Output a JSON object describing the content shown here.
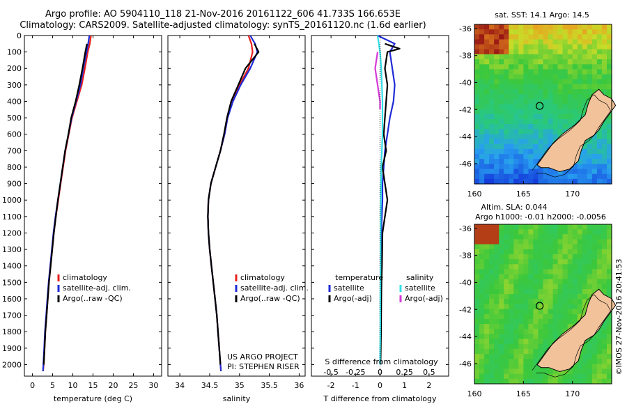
{
  "header": {
    "title_line1": "Argo profile: AO 5904110_118 21-Nov-2016 20161122_606 41.733S 166.653E",
    "title_line2": "Climatology: CARS2009. Satellite-adjusted climatology: synTS_20161120.nc (1.6d earlier)"
  },
  "watermark": "©IMOS 27-Nov-2016 20:41:53",
  "colors": {
    "climatology": "#e8201e",
    "satellite": "#1f2bd6",
    "argo": "#000000",
    "sat_salinity": "#33e0e8",
    "argo_salinity_adj": "#d43ad8"
  },
  "chart_data": [
    {
      "type": "line",
      "id": "temperature",
      "xlabel": "temperature (deg C)",
      "ylabel": "",
      "xlim": [
        -2,
        32
      ],
      "ylim": [
        2070,
        0
      ],
      "xticks": [
        0,
        5,
        10,
        15,
        20,
        25,
        30
      ],
      "yticks": [
        0,
        100,
        200,
        300,
        400,
        500,
        600,
        700,
        800,
        900,
        1000,
        1100,
        1200,
        1300,
        1400,
        1500,
        1600,
        1700,
        1800,
        1900,
        2000
      ],
      "legend": {
        "placement": "lower-right",
        "entries": [
          "climatology",
          "satellite-adj. clim.",
          "Argo(..raw -QC)"
        ]
      },
      "series": [
        {
          "name": "climatology",
          "color": "#e8201e",
          "x": [
            14.5,
            14.2,
            13.7,
            13.0,
            12.2,
            11.0,
            9.8,
            9.0,
            8.2,
            7.6,
            7.0,
            6.4,
            5.8,
            5.3,
            4.9,
            4.5,
            4.1,
            3.8,
            3.5,
            3.2,
            3.0,
            2.8,
            2.6
          ],
          "y": [
            0,
            50,
            100,
            200,
            300,
            400,
            500,
            600,
            700,
            800,
            900,
            1000,
            1100,
            1200,
            1300,
            1400,
            1500,
            1600,
            1700,
            1800,
            1900,
            2000,
            2040
          ]
        },
        {
          "name": "satellite-adj. clim.",
          "color": "#1f2bd6",
          "x": [
            14.1,
            13.8,
            13.4,
            12.6,
            11.9,
            10.8,
            9.7,
            8.9,
            8.1,
            7.5,
            6.9,
            6.3,
            5.7,
            5.2,
            4.8,
            4.4,
            4.0,
            3.7,
            3.4,
            3.1,
            2.9,
            2.7,
            2.6
          ],
          "y": [
            0,
            50,
            100,
            200,
            300,
            400,
            500,
            600,
            700,
            800,
            900,
            1000,
            1100,
            1200,
            1300,
            1400,
            1500,
            1600,
            1700,
            1800,
            1900,
            2000,
            2040
          ]
        },
        {
          "name": "Argo(..raw -QC)",
          "color": "#000000",
          "x": [
            13.5,
            13.1,
            12.4,
            11.6,
            10.7,
            9.6,
            8.9,
            8.1,
            7.5,
            6.9,
            6.3,
            5.8,
            5.3,
            4.9,
            4.5,
            4.1,
            3.8,
            3.5,
            3.2,
            3.0,
            2.8
          ],
          "y": [
            50,
            100,
            200,
            300,
            400,
            500,
            600,
            700,
            800,
            900,
            1000,
            1100,
            1200,
            1300,
            1400,
            1500,
            1600,
            1700,
            1800,
            1900,
            2000
          ]
        }
      ]
    },
    {
      "type": "line",
      "id": "salinity",
      "xlabel": "salinity",
      "ylabel": "",
      "xlim": [
        33.8,
        36.1
      ],
      "ylim": [
        2070,
        0
      ],
      "xticks": [
        34,
        34.5,
        35,
        35.5,
        36
      ],
      "legend": {
        "placement": "lower-right",
        "entries": [
          "climatology",
          "satellite-adj. clim.",
          "Argo(..raw -QC)"
        ]
      },
      "annotation": [
        "US ARGO PROJECT",
        "PI: STEPHEN RISER"
      ],
      "series": [
        {
          "name": "climatology",
          "color": "#e8201e",
          "x": [
            35.15,
            35.2,
            35.22,
            35.15,
            35.0,
            34.88,
            34.8,
            34.75,
            34.68,
            34.6,
            34.52,
            34.48,
            34.47,
            34.48,
            34.5,
            34.53,
            34.56,
            34.59,
            34.62,
            34.64,
            34.66,
            34.68,
            34.69
          ],
          "y": [
            0,
            50,
            100,
            200,
            300,
            400,
            500,
            600,
            700,
            800,
            900,
            1000,
            1100,
            1200,
            1300,
            1400,
            1500,
            1600,
            1700,
            1800,
            1900,
            2000,
            2040
          ]
        },
        {
          "name": "satellite-adj. clim.",
          "color": "#1f2bd6",
          "x": [
            35.18,
            35.26,
            35.3,
            35.18,
            35.02,
            34.89,
            34.8,
            34.75,
            34.68,
            34.6,
            34.52,
            34.48,
            34.47,
            34.48,
            34.5,
            34.53,
            34.56,
            34.59,
            34.62,
            34.64,
            34.66,
            34.68,
            34.69
          ],
          "y": [
            0,
            50,
            100,
            200,
            300,
            400,
            500,
            600,
            700,
            800,
            900,
            1000,
            1100,
            1200,
            1300,
            1400,
            1500,
            1600,
            1700,
            1800,
            1900,
            2000,
            2040
          ]
        },
        {
          "name": "Argo(..raw -QC)",
          "color": "#000000",
          "x": [
            35.25,
            35.32,
            35.1,
            34.98,
            34.86,
            34.79,
            34.74,
            34.68,
            34.6,
            34.52,
            34.48,
            34.47,
            34.48,
            34.5,
            34.53,
            34.56,
            34.59,
            34.62,
            34.64,
            34.66,
            34.68
          ],
          "y": [
            50,
            100,
            200,
            300,
            400,
            500,
            600,
            700,
            800,
            900,
            1000,
            1100,
            1200,
            1300,
            1400,
            1500,
            1600,
            1700,
            1800,
            1900,
            2000
          ]
        }
      ]
    },
    {
      "type": "line",
      "id": "difference",
      "xlabel": "T difference from climatology",
      "xlabel_top": "S difference from climatology",
      "ylabel": "",
      "xlim": [
        -2.8,
        2.8
      ],
      "ylim": [
        2070,
        0
      ],
      "xticks_bottom": [
        -2,
        -1,
        0,
        1,
        2
      ],
      "xticks_top_labels": [
        "-0.5",
        "-0.25",
        "0",
        "0.25",
        "0.5"
      ],
      "xticks_top_pos": [
        -2,
        -1,
        0,
        1,
        2
      ],
      "legend": {
        "placement": "lower-right",
        "groups": [
          {
            "title": "temperature",
            "entries": [
              "satellite",
              "Argo(-adj)"
            ]
          },
          {
            "title": "salinity",
            "entries": [
              "satellite",
              "Argo(-adj)"
            ]
          }
        ]
      },
      "series": [
        {
          "name": "temperature satellite",
          "color": "#1f2bd6",
          "x": [
            -0.1,
            0.6,
            0.4,
            0.5,
            0.6,
            0.55,
            0.4,
            0.3,
            0.2,
            0.15,
            0.1,
            0.1,
            0.05,
            0.05,
            0.05,
            0.03,
            0.03,
            0.02,
            0.02
          ],
          "y": [
            0,
            50,
            100,
            200,
            300,
            400,
            500,
            600,
            700,
            800,
            900,
            1000,
            1200,
            1400,
            1500,
            1600,
            1800,
            1900,
            2000
          ]
        },
        {
          "name": "temperature Argo(-adj)",
          "color": "#000000",
          "x": [
            0.2,
            0.8,
            0.3,
            0.2,
            0.3,
            0.25,
            0.2,
            0.15,
            0.25,
            0.1,
            0.3,
            0.2,
            0.1,
            0.08,
            0.06,
            0.05,
            0.04,
            0.03,
            0.02
          ],
          "y": [
            50,
            80,
            100,
            200,
            300,
            400,
            500,
            600,
            700,
            800,
            1000,
            1100,
            1200,
            1400,
            1500,
            1600,
            1800,
            1900,
            2000
          ]
        },
        {
          "name": "salinity satellite",
          "color": "#33e0e8",
          "x": [
            -0.1,
            0.0,
            0.05,
            0.1,
            0.1,
            0.05,
            0.03,
            0.02,
            0.02,
            0.01,
            0.01,
            0.0
          ],
          "y": [
            0,
            100,
            200,
            400,
            600,
            800,
            1000,
            1200,
            1400,
            1600,
            1800,
            2000
          ]
        },
        {
          "name": "salinity Argo(-adj)",
          "color": "#d43ad8",
          "x": [
            -0.1,
            -0.2,
            -0.1,
            -0.05,
            0.0,
            0.0
          ],
          "y": [
            100,
            200,
            300,
            350,
            400,
            450
          ]
        }
      ]
    },
    {
      "type": "heatmap",
      "id": "sst_map",
      "title": "sat. SST: 14.1 Argo: 14.5",
      "xlim": [
        160,
        174
      ],
      "ylim": [
        -47.5,
        -35.7
      ],
      "xticks": [
        160,
        165,
        170
      ],
      "yticks": [
        -36,
        -38,
        -40,
        -42,
        -44,
        -46
      ],
      "marker": {
        "lon": 166.653,
        "lat": -41.733
      }
    },
    {
      "type": "heatmap",
      "id": "sla_map",
      "title": "Altim. SLA: 0.044",
      "subtitle": "Argo h1000: -0.01 h2000: -0.0056",
      "xlim": [
        160,
        174
      ],
      "ylim": [
        -47.5,
        -35.7
      ],
      "xticks": [
        160,
        165,
        170
      ],
      "yticks": [
        -36,
        -38,
        -40,
        -42,
        -44,
        -46
      ],
      "marker": {
        "lon": 166.653,
        "lat": -41.733
      }
    }
  ]
}
